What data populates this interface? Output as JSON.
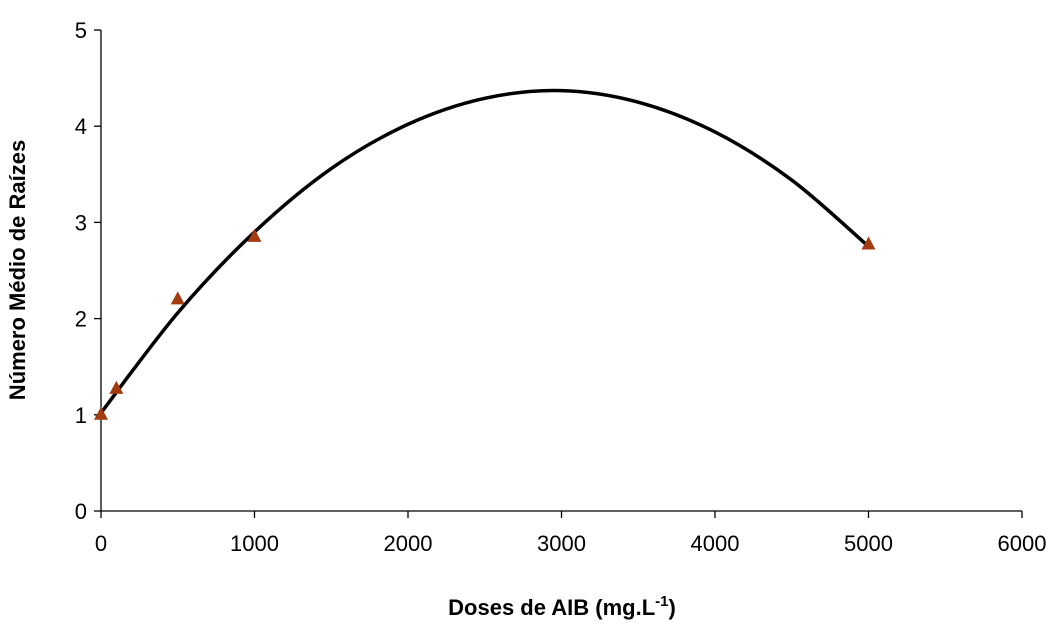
{
  "chart_data": {
    "type": "scatter",
    "ylabel": "Número Médio de Raízes",
    "xlabel": [
      "Doses de AIB (mg.L",
      "-1",
      ")"
    ],
    "xlim": [
      0,
      6000
    ],
    "xticks": [
      0,
      1000,
      2000,
      3000,
      4000,
      5000,
      6000
    ],
    "ylim": [
      0,
      5
    ],
    "yticks": [
      0,
      1,
      2,
      3,
      4,
      5
    ],
    "grid": false,
    "series": [
      {
        "color": "#a23b0f",
        "marker": "triangle",
        "x": [
          0,
          100,
          500,
          1000,
          5000
        ],
        "values": [
          1.0,
          1.27,
          2.2,
          2.85,
          2.77
        ]
      }
    ],
    "trendline": {
      "color": "#000000",
      "x": [
        0,
        500,
        1000,
        1500,
        2000,
        2500,
        3000,
        3500,
        4000,
        4500,
        5000
      ],
      "values": [
        1.02,
        2.06,
        2.9,
        3.56,
        4.02,
        4.29,
        4.37,
        4.25,
        3.94,
        3.44,
        2.75
      ]
    }
  }
}
